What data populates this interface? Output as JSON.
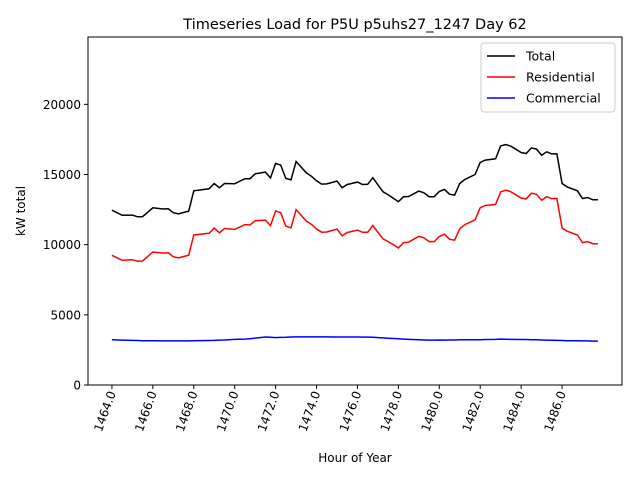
{
  "chart_data": {
    "type": "line",
    "title": "Timeseries Load for P5U p5uhs27_1247  Day 62",
    "xlabel": "Hour of Year",
    "ylabel": "kW total",
    "xlim": [
      1462.83,
      1488.93
    ],
    "ylim": [
      0,
      24800
    ],
    "xticks": [
      1464,
      1466,
      1468,
      1470,
      1472,
      1474,
      1476,
      1478,
      1480,
      1482,
      1484,
      1486
    ],
    "xtick_labels": [
      "1464.0",
      "1466.0",
      "1468.0",
      "1470.0",
      "1472.0",
      "1474.0",
      "1476.0",
      "1478.0",
      "1480.0",
      "1482.0",
      "1484.0",
      "1486.0"
    ],
    "yticks": [
      0,
      5000,
      10000,
      15000,
      20000
    ],
    "ytick_labels": [
      "0",
      "5000",
      "10000",
      "15000",
      "20000"
    ],
    "grid": false,
    "legend_position": "top-right",
    "x": [
      1464,
      1464.5,
      1465,
      1465.25,
      1465.5,
      1466,
      1466.5,
      1466.75,
      1467,
      1467.25,
      1467.75,
      1468,
      1468.75,
      1469,
      1469.25,
      1469.5,
      1470,
      1470.5,
      1470.75,
      1471,
      1471.5,
      1471.75,
      1472,
      1472.25,
      1472.5,
      1472.75,
      1473,
      1473.5,
      1473.75,
      1474,
      1474.25,
      1474.5,
      1475,
      1475.25,
      1475.5,
      1476,
      1476.25,
      1476.5,
      1476.75,
      1477.25,
      1477.5,
      1478,
      1478.25,
      1478.5,
      1479,
      1479.25,
      1479.5,
      1479.75,
      1480,
      1480.25,
      1480.5,
      1480.75,
      1481,
      1481.25,
      1481.75,
      1482,
      1482.25,
      1482.75,
      1483,
      1483.25,
      1483.5,
      1484,
      1484.25,
      1484.5,
      1484.75,
      1485,
      1485.25,
      1485.5,
      1485.75,
      1486,
      1486.25,
      1486.75,
      1487,
      1487.25,
      1487.5,
      1487.75
    ],
    "series": [
      {
        "name": "Total",
        "color": "#000000",
        "values": [
          12460,
          12090,
          12110,
          11990,
          12000,
          12630,
          12540,
          12560,
          12280,
          12200,
          12390,
          13840,
          13980,
          14360,
          14050,
          14360,
          14340,
          14700,
          14700,
          15050,
          15170,
          14760,
          15790,
          15670,
          14720,
          14620,
          15930,
          15120,
          14880,
          14550,
          14320,
          14330,
          14530,
          14050,
          14290,
          14460,
          14290,
          14300,
          14770,
          13770,
          13560,
          13060,
          13420,
          13430,
          13820,
          13700,
          13420,
          13420,
          13790,
          13940,
          13600,
          13530,
          14360,
          14650,
          15000,
          15860,
          16030,
          16120,
          17040,
          17140,
          17020,
          16570,
          16500,
          16900,
          16810,
          16380,
          16620,
          16470,
          16470,
          14360,
          14120,
          13840,
          13290,
          13360,
          13200,
          13200
        ]
      },
      {
        "name": "Residential",
        "color": "#ff0000",
        "values": [
          9240,
          8890,
          8930,
          8820,
          8840,
          9480,
          9400,
          9420,
          9140,
          9060,
          9250,
          10690,
          10810,
          11180,
          10850,
          11150,
          11090,
          11430,
          11400,
          11710,
          11750,
          11360,
          12410,
          12280,
          11320,
          11200,
          12500,
          11690,
          11450,
          11120,
          10890,
          10900,
          11110,
          10630,
          10870,
          11040,
          10880,
          10890,
          11370,
          10410,
          10230,
          9770,
          10150,
          10180,
          10600,
          10490,
          10220,
          10220,
          10580,
          10740,
          10390,
          10320,
          11140,
          11430,
          11770,
          12630,
          12790,
          12870,
          13770,
          13880,
          13770,
          13330,
          13260,
          13670,
          13590,
          13170,
          13420,
          13280,
          13290,
          11190,
          10960,
          10690,
          10150,
          10220,
          10070,
          10070
        ]
      },
      {
        "name": "Commercial",
        "color": "#0000ff",
        "values": [
          3220,
          3200,
          3180,
          3170,
          3160,
          3150,
          3140,
          3140,
          3140,
          3140,
          3140,
          3150,
          3170,
          3180,
          3200,
          3210,
          3250,
          3270,
          3300,
          3340,
          3420,
          3400,
          3380,
          3390,
          3400,
          3420,
          3430,
          3430,
          3430,
          3430,
          3430,
          3430,
          3420,
          3420,
          3420,
          3420,
          3410,
          3410,
          3400,
          3360,
          3330,
          3290,
          3270,
          3250,
          3220,
          3210,
          3200,
          3200,
          3210,
          3200,
          3210,
          3210,
          3220,
          3220,
          3230,
          3230,
          3240,
          3250,
          3270,
          3260,
          3250,
          3240,
          3240,
          3230,
          3220,
          3210,
          3200,
          3190,
          3180,
          3170,
          3160,
          3150,
          3140,
          3140,
          3130,
          3130
        ]
      }
    ]
  }
}
